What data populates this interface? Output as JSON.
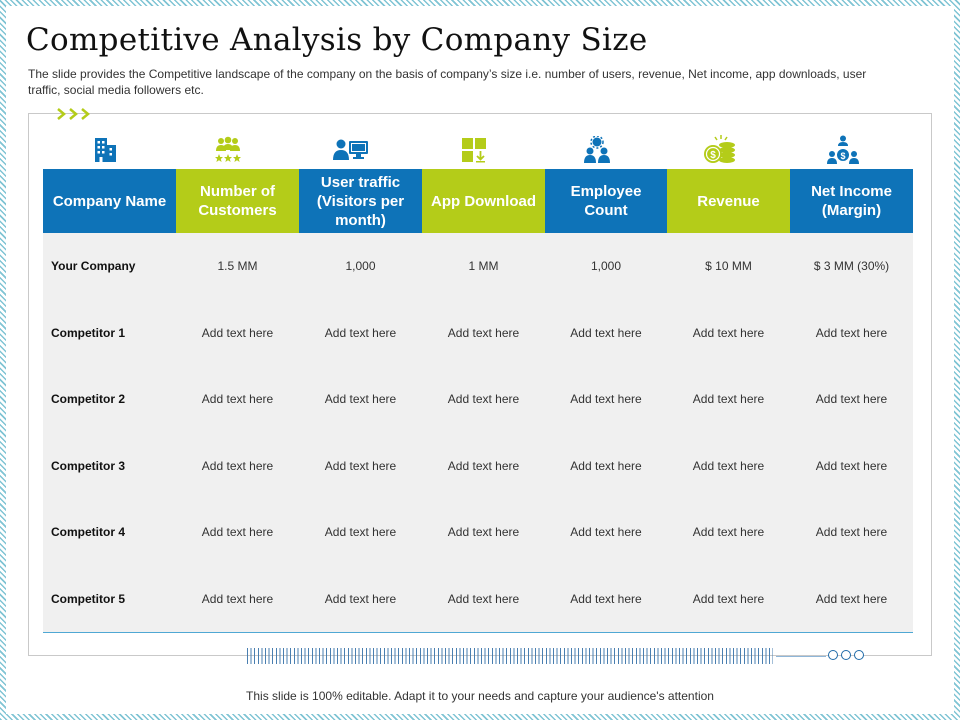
{
  "title": "Competitive Analysis by Company Size",
  "subtitle": "The slide provides  the Competitive  landscape of the company on the basis of company’s size i.e. number of users, revenue,  Net income, app downloads,  user traffic, social media followers  etc.",
  "icons": [
    "building-icon",
    "customers-group-icon",
    "user-computer-icon",
    "app-tiles-icon",
    "employee-team-icon",
    "coins-revenue-icon",
    "net-income-people-icon"
  ],
  "colors": {
    "blue": "#0e73b8",
    "green": "#b4cc19",
    "row_bg": "#f0f0f0"
  },
  "table": {
    "headers": [
      "Company Name",
      "Number of Customers",
      "User traffic (Visitors per month)",
      "App Download",
      "Employee Count",
      "Revenue",
      "Net Income (Margin)"
    ],
    "rows": [
      {
        "name": "Your Company",
        "cells": [
          "1.5 MM",
          "1,000",
          "1 MM",
          "1,000",
          "$ 10 MM",
          "$ 3 MM (30%)"
        ]
      },
      {
        "name": "Competitor 1",
        "cells": [
          "Add text here",
          "Add text here",
          "Add text here",
          "Add text here",
          "Add text here",
          "Add text here"
        ]
      },
      {
        "name": "Competitor 2",
        "cells": [
          "Add text here",
          "Add text here",
          "Add text here",
          "Add text here",
          "Add text here",
          "Add text here"
        ]
      },
      {
        "name": "Competitor 3",
        "cells": [
          "Add text here",
          "Add text here",
          "Add text here",
          "Add text here",
          "Add text here",
          "Add text here"
        ]
      },
      {
        "name": "Competitor 4",
        "cells": [
          "Add text here",
          "Add text here",
          "Add text here",
          "Add text here",
          "Add text here",
          "Add text here"
        ]
      },
      {
        "name": "Competitor 5",
        "cells": [
          "Add text here",
          "Add text here",
          "Add text here",
          "Add text here",
          "Add text here",
          "Add text here"
        ]
      }
    ]
  },
  "footer": "This slide is 100% editable. Adapt it to your needs and capture your audience's attention"
}
